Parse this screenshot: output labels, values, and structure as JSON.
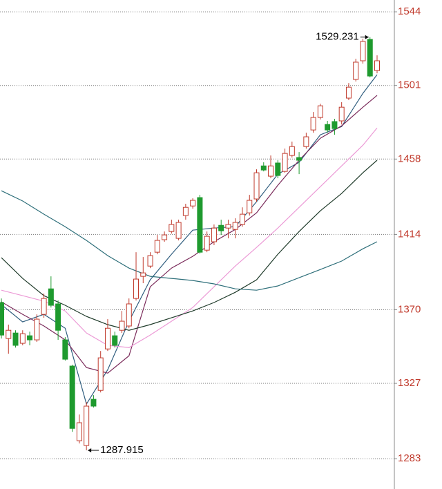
{
  "chart_data": {
    "type": "candlestick",
    "open": [
      1374.2,
      1353.2,
      1356.4,
      1350.4,
      1354.8,
      1352.4,
      1367.3,
      1382.2,
      1373.4,
      1352.4,
      1337.1,
      1293.5,
      1290.7,
      1317.7,
      1322.9,
      1347.1,
      1354.8,
      1358.0,
      1360.5,
      1376.6,
      1389.5,
      1395.5,
      1403.6,
      1410.9,
      1415.7,
      1411.7,
      1425.0,
      1430.6,
      1435.5,
      1404.8,
      1409.7,
      1419.3,
      1417.7,
      1416.9,
      1419.8,
      1426.6,
      1434.7,
      1454.0,
      1448.0,
      1455.7,
      1450.8,
      1460.1,
      1458.9,
      1465.3,
      1475.0,
      1482.3,
      1478.2,
      1479.9,
      1480.3,
      1493.6,
      1504.5,
      1515.4,
      1527.9,
      1509.7
    ],
    "high": [
      1376.6,
      1361.3,
      1358.0,
      1358.0,
      1357.2,
      1367.3,
      1379.4,
      1389.5,
      1375.4,
      1354.0,
      1337.9,
      1308.8,
      1316.1,
      1320.1,
      1345.9,
      1364.5,
      1357.2,
      1369.3,
      1376.6,
      1403.6,
      1400.8,
      1403.6,
      1413.7,
      1415.7,
      1422.6,
      1422.6,
      1431.9,
      1435.1,
      1437.1,
      1415.7,
      1419.8,
      1422.6,
      1422.6,
      1423.4,
      1429.8,
      1437.1,
      1452.0,
      1456.1,
      1460.1,
      1457.3,
      1464.1,
      1468.2,
      1462.1,
      1473.4,
      1485.5,
      1490.3,
      1480.3,
      1481.5,
      1491.2,
      1502.4,
      1516.6,
      1528.3,
      1529.231,
      1518.6
    ],
    "low": [
      1353.2,
      1344.3,
      1347.9,
      1349.2,
      1349.2,
      1351.2,
      1365.3,
      1371.3,
      1352.4,
      1340.3,
      1298.7,
      1291.9,
      1287.915,
      1312.9,
      1321.7,
      1345.9,
      1347.9,
      1356.4,
      1359.2,
      1375.4,
      1385.5,
      1394.3,
      1402.4,
      1409.7,
      1414.5,
      1410.5,
      1422.6,
      1429.0,
      1402.8,
      1403.6,
      1407.7,
      1413.7,
      1411.7,
      1411.7,
      1418.5,
      1425.0,
      1433.1,
      1450.8,
      1446.8,
      1446.8,
      1450.0,
      1458.9,
      1449.2,
      1464.1,
      1473.4,
      1481.1,
      1473.4,
      1472.2,
      1478.2,
      1492.4,
      1503.3,
      1513.7,
      1505.7,
      1508.1
    ],
    "close": [
      1355.2,
      1358.0,
      1349.2,
      1356.0,
      1352.4,
      1364.5,
      1376.6,
      1372.6,
      1358.0,
      1341.1,
      1300.7,
      1304.0,
      1313.7,
      1313.7,
      1341.9,
      1359.2,
      1349.2,
      1363.3,
      1373.4,
      1387.9,
      1391.5,
      1401.6,
      1410.5,
      1413.7,
      1419.8,
      1421.0,
      1429.8,
      1433.9,
      1403.6,
      1412.9,
      1417.7,
      1416.1,
      1419.8,
      1421.0,
      1425.8,
      1433.9,
      1450.0,
      1451.6,
      1454.0,
      1448.4,
      1461.3,
      1465.3,
      1457.3,
      1471.0,
      1482.3,
      1489.1,
      1475.0,
      1475.8,
      1488.3,
      1500.0,
      1514.6,
      1526.7,
      1506.5,
      1515.4
    ],
    "up_color": "#c0392b",
    "down_color": "#1e9a2e",
    "ma_x": [
      0,
      3,
      6,
      9,
      12,
      15,
      18,
      21,
      24,
      27,
      30,
      33,
      36,
      39,
      42,
      45,
      48,
      51,
      53
    ],
    "series": [
      {
        "color": "#2f5d7e",
        "values": [
          1373.0,
          1362.9,
          1367.3,
          1359.2,
          1314.9,
          1335.0,
          1363.3,
          1387.5,
          1402.4,
          1416.5,
          1417.7,
          1418.5,
          1433.1,
          1449.2,
          1456.1,
          1472.2,
          1477.0,
          1496.4,
          1507.3
        ]
      },
      {
        "color": "#7a2a5a",
        "values": [
          1374.6,
          1367.3,
          1360.5,
          1352.4,
          1336.2,
          1333.0,
          1343.1,
          1383.4,
          1394.3,
          1401.2,
          1409.7,
          1416.9,
          1426.6,
          1442.7,
          1457.3,
          1470.2,
          1477.4,
          1488.3,
          1495.2
        ]
      },
      {
        "color": "#ec9ad6",
        "values": [
          1381.4,
          1378.2,
          1375.0,
          1369.3,
          1356.4,
          1349.2,
          1347.9,
          1355.2,
          1363.3,
          1371.3,
          1383.4,
          1395.5,
          1406.4,
          1417.7,
          1429.8,
          1441.9,
          1454.0,
          1466.1,
          1476.2
        ]
      },
      {
        "color": "#1f3b2a",
        "values": [
          1400.4,
          1388.3,
          1378.2,
          1372.6,
          1366.1,
          1361.3,
          1358.0,
          1361.3,
          1365.3,
          1369.3,
          1374.2,
          1380.2,
          1387.5,
          1402.4,
          1415.7,
          1427.8,
          1437.9,
          1450.0,
          1457.3
        ]
      },
      {
        "color": "#2e6f7a",
        "values": [
          1439.5,
          1433.5,
          1425.8,
          1418.5,
          1410.5,
          1401.6,
          1394.3,
          1389.5,
          1388.3,
          1387.1,
          1385.1,
          1382.2,
          1381.4,
          1383.9,
          1388.7,
          1393.5,
          1398.4,
          1405.6,
          1409.7
        ]
      }
    ],
    "ylim": [
      1265.3,
      1550.9
    ],
    "yticks": [
      1283,
      1327,
      1370,
      1414,
      1458,
      1501,
      1544
    ],
    "grid": true,
    "tick_color": "#c0392b"
  }
}
